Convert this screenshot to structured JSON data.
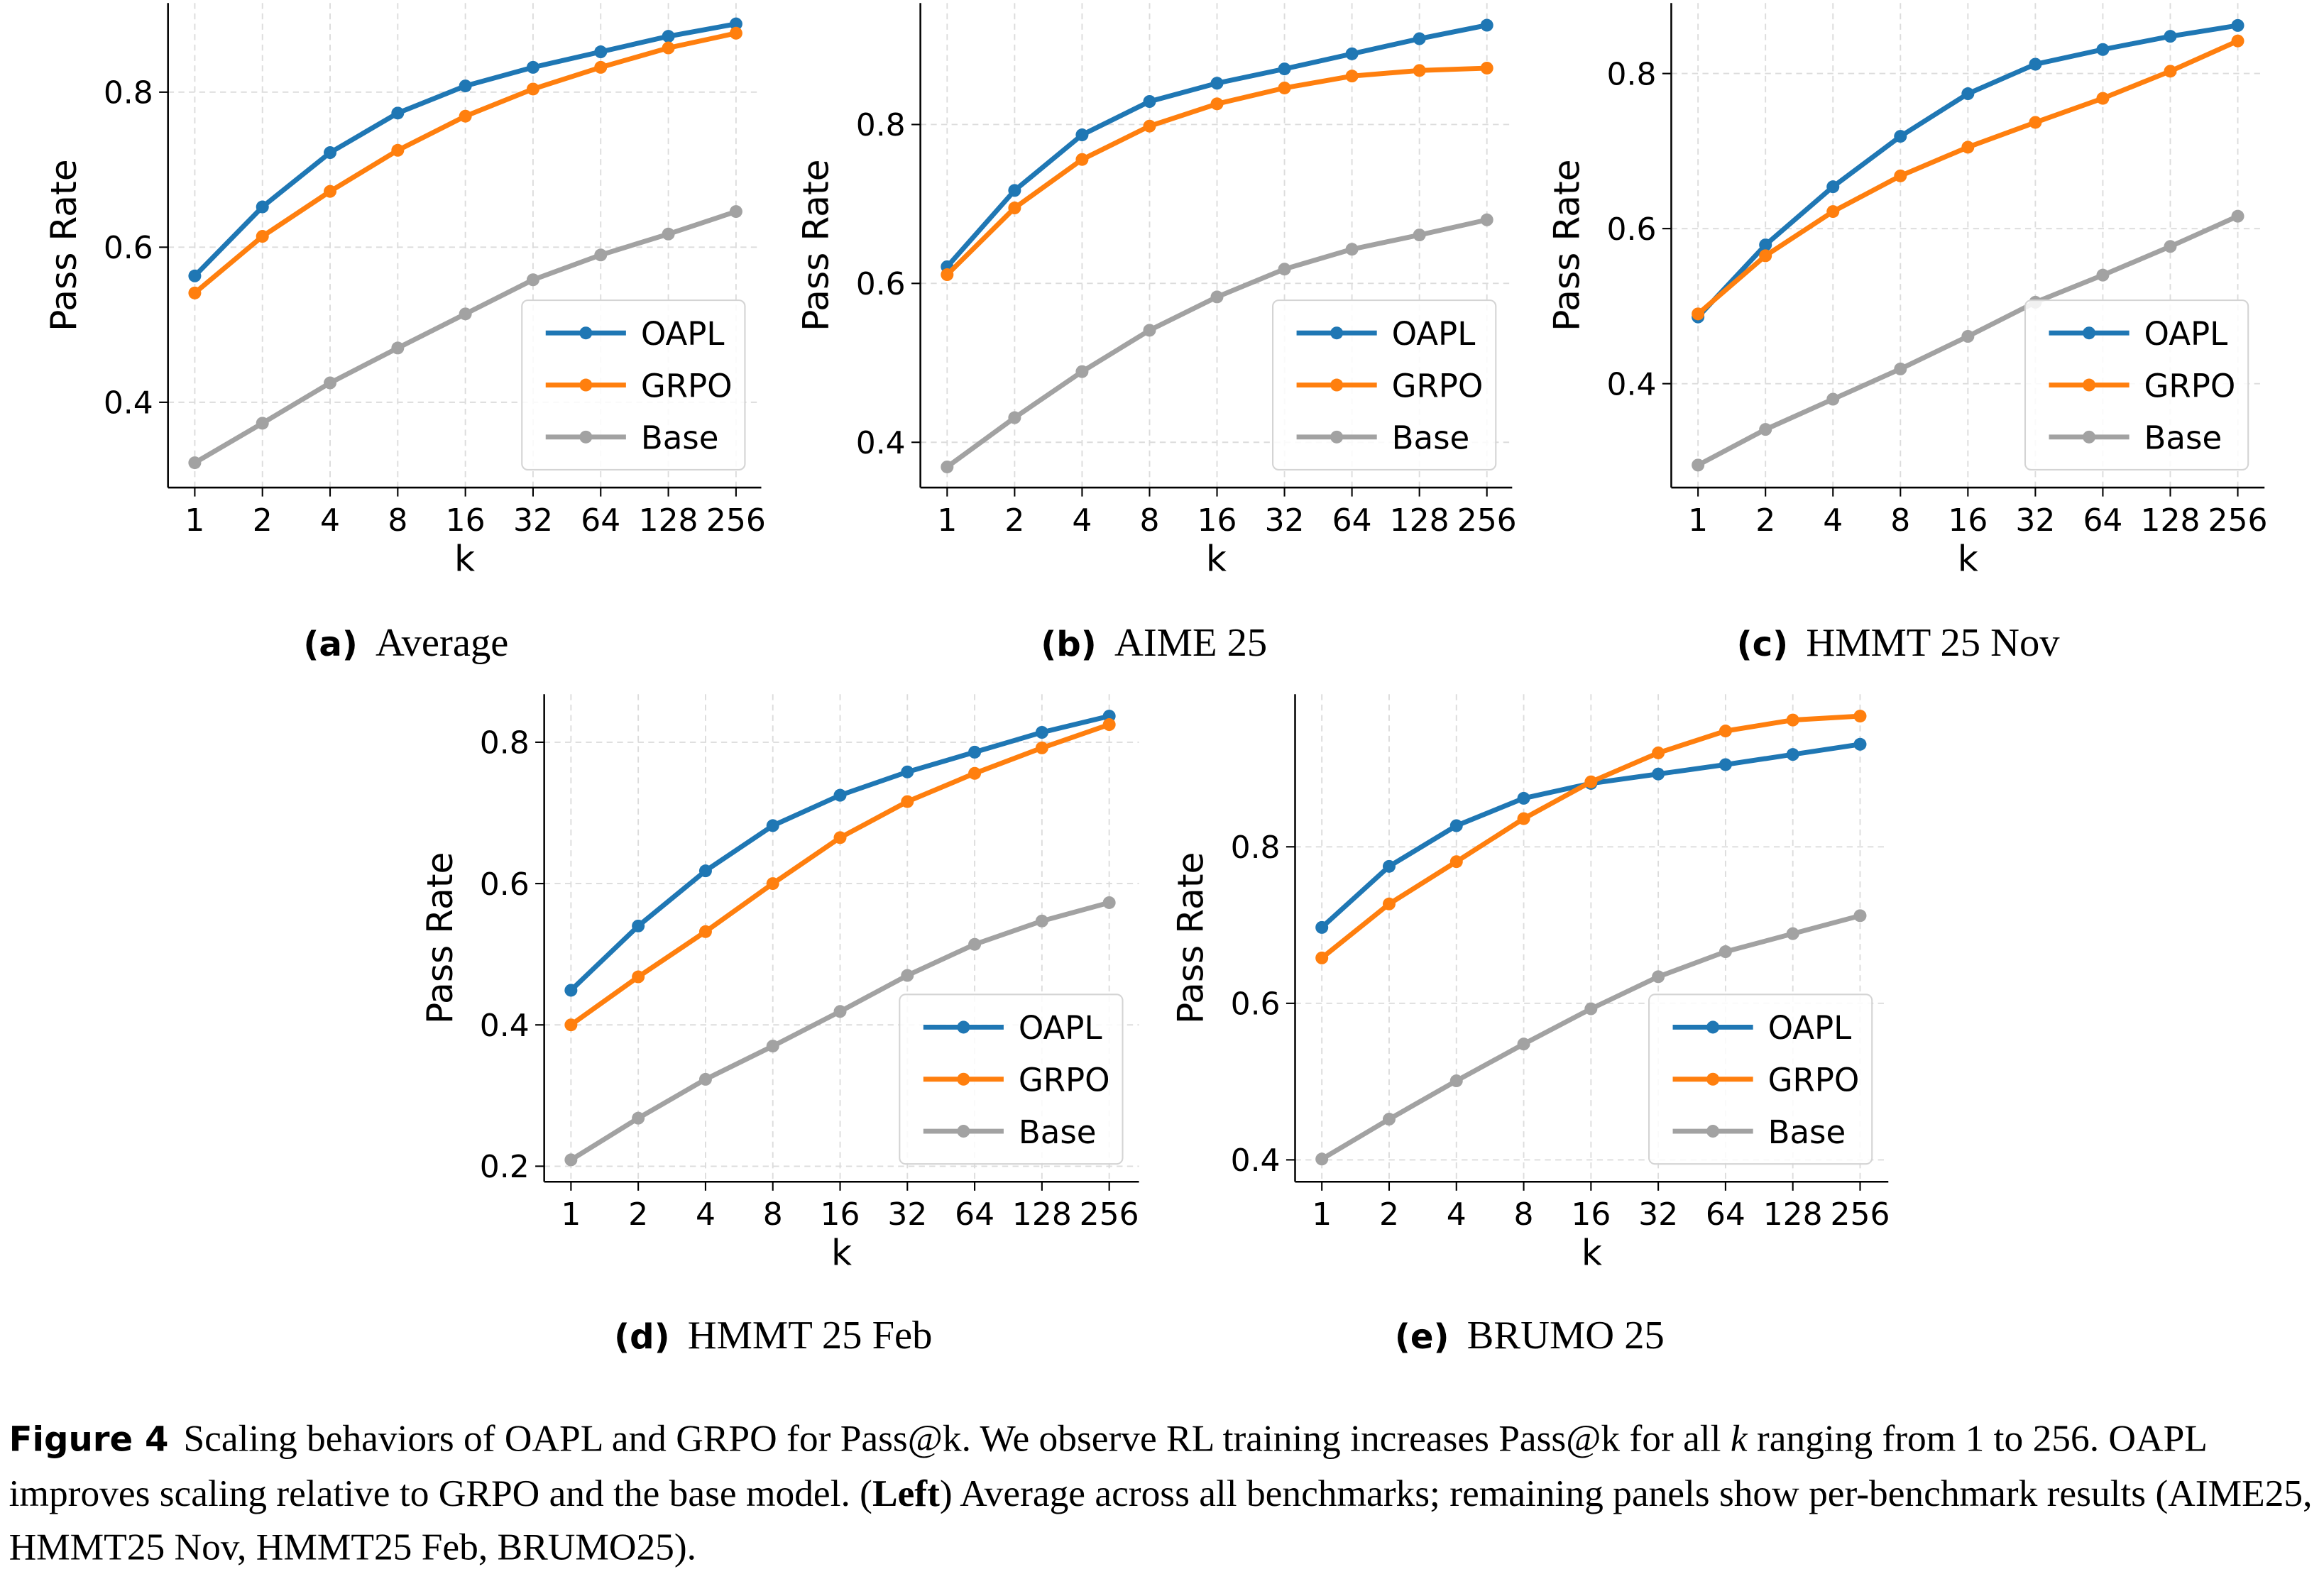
{
  "colors": {
    "OAPL": "#1f77b4",
    "GRPO": "#ff7f0e",
    "Base": "#a2a2a2",
    "grid": "#dcdcdc",
    "legend_border": "#d4d4d4"
  },
  "chart_data": [
    {
      "id": "a",
      "type": "line",
      "panel_tag": "(a)",
      "title": "Average",
      "xlabel": "k",
      "ylabel": "Pass Rate",
      "x": [
        1,
        2,
        4,
        8,
        16,
        32,
        64,
        128,
        256
      ],
      "x_tick_labels": [
        "1",
        "2",
        "4",
        "8",
        "16",
        "32",
        "64",
        "128",
        "256"
      ],
      "x_scale": "log2",
      "y_ticks": [
        0.4,
        0.6,
        0.8
      ],
      "y_tick_labels": [
        "0.4",
        "0.6",
        "0.8"
      ],
      "ylim": [
        0.29,
        0.915
      ],
      "grid": true,
      "legend_position": "lower-right",
      "series": [
        {
          "name": "OAPL",
          "values": [
            0.563,
            0.652,
            0.722,
            0.773,
            0.808,
            0.832,
            0.852,
            0.872,
            0.888
          ]
        },
        {
          "name": "GRPO",
          "values": [
            0.541,
            0.614,
            0.672,
            0.725,
            0.769,
            0.804,
            0.832,
            0.857,
            0.876
          ]
        },
        {
          "name": "Base",
          "values": [
            0.322,
            0.373,
            0.425,
            0.47,
            0.514,
            0.558,
            0.59,
            0.617,
            0.646
          ]
        }
      ]
    },
    {
      "id": "b",
      "type": "line",
      "panel_tag": "(b)",
      "title": "AIME 25",
      "xlabel": "k",
      "ylabel": "Pass Rate",
      "x": [
        1,
        2,
        4,
        8,
        16,
        32,
        64,
        128,
        256
      ],
      "x_tick_labels": [
        "1",
        "2",
        "4",
        "8",
        "16",
        "32",
        "64",
        "128",
        "256"
      ],
      "x_scale": "log2",
      "y_ticks": [
        0.4,
        0.6,
        0.8
      ],
      "y_tick_labels": [
        "0.4",
        "0.6",
        "0.8"
      ],
      "ylim": [
        0.343,
        0.953
      ],
      "grid": true,
      "legend_position": "lower-right",
      "series": [
        {
          "name": "OAPL",
          "values": [
            0.621,
            0.717,
            0.787,
            0.829,
            0.852,
            0.87,
            0.889,
            0.908,
            0.925
          ]
        },
        {
          "name": "GRPO",
          "values": [
            0.611,
            0.695,
            0.756,
            0.798,
            0.826,
            0.846,
            0.861,
            0.868,
            0.871
          ]
        },
        {
          "name": "Base",
          "values": [
            0.369,
            0.431,
            0.489,
            0.541,
            0.583,
            0.618,
            0.643,
            0.661,
            0.68
          ]
        }
      ]
    },
    {
      "id": "c",
      "type": "line",
      "panel_tag": "(c)",
      "title": "HMMT 25 Nov",
      "xlabel": "k",
      "ylabel": "Pass Rate",
      "x": [
        1,
        2,
        4,
        8,
        16,
        32,
        64,
        128,
        256
      ],
      "x_tick_labels": [
        "1",
        "2",
        "4",
        "8",
        "16",
        "32",
        "64",
        "128",
        "256"
      ],
      "x_scale": "log2",
      "y_ticks": [
        0.4,
        0.6,
        0.8
      ],
      "y_tick_labels": [
        "0.4",
        "0.6",
        "0.8"
      ],
      "ylim": [
        0.266,
        0.891
      ],
      "grid": true,
      "legend_position": "lower-right",
      "series": [
        {
          "name": "OAPL",
          "values": [
            0.486,
            0.579,
            0.654,
            0.719,
            0.774,
            0.812,
            0.831,
            0.848,
            0.862
          ]
        },
        {
          "name": "GRPO",
          "values": [
            0.49,
            0.565,
            0.622,
            0.668,
            0.705,
            0.737,
            0.768,
            0.803,
            0.842
          ]
        },
        {
          "name": "Base",
          "values": [
            0.295,
            0.341,
            0.38,
            0.419,
            0.461,
            0.505,
            0.54,
            0.577,
            0.616
          ]
        }
      ]
    },
    {
      "id": "d",
      "type": "line",
      "panel_tag": "(d)",
      "title": "HMMT 25 Feb",
      "xlabel": "k",
      "ylabel": "Pass Rate",
      "x": [
        1,
        2,
        4,
        8,
        16,
        32,
        64,
        128,
        256
      ],
      "x_tick_labels": [
        "1",
        "2",
        "4",
        "8",
        "16",
        "32",
        "64",
        "128",
        "256"
      ],
      "x_scale": "log2",
      "y_ticks": [
        0.2,
        0.4,
        0.6,
        0.8
      ],
      "y_tick_labels": [
        "0.2",
        "0.4",
        "0.6",
        "0.8"
      ],
      "ylim": [
        0.178,
        0.868
      ],
      "grid": true,
      "legend_position": "lower-right",
      "series": [
        {
          "name": "OAPL",
          "values": [
            0.449,
            0.54,
            0.618,
            0.682,
            0.725,
            0.758,
            0.786,
            0.814,
            0.837
          ]
        },
        {
          "name": "GRPO",
          "values": [
            0.4,
            0.468,
            0.532,
            0.6,
            0.665,
            0.716,
            0.756,
            0.792,
            0.825
          ]
        },
        {
          "name": "Base",
          "values": [
            0.209,
            0.268,
            0.323,
            0.37,
            0.419,
            0.47,
            0.514,
            0.547,
            0.573
          ]
        }
      ]
    },
    {
      "id": "e",
      "type": "line",
      "panel_tag": "(e)",
      "title": "BRUMO 25",
      "xlabel": "k",
      "ylabel": "Pass Rate",
      "x": [
        1,
        2,
        4,
        8,
        16,
        32,
        64,
        128,
        256
      ],
      "x_tick_labels": [
        "1",
        "2",
        "4",
        "8",
        "16",
        "32",
        "64",
        "128",
        "256"
      ],
      "x_scale": "log2",
      "y_ticks": [
        0.4,
        0.6,
        0.8
      ],
      "y_tick_labels": [
        "0.4",
        "0.6",
        "0.8"
      ],
      "ylim": [
        0.372,
        0.995
      ],
      "grid": true,
      "legend_position": "lower-right",
      "series": [
        {
          "name": "OAPL",
          "values": [
            0.697,
            0.775,
            0.827,
            0.862,
            0.881,
            0.893,
            0.905,
            0.918,
            0.931
          ]
        },
        {
          "name": "GRPO",
          "values": [
            0.658,
            0.727,
            0.781,
            0.836,
            0.883,
            0.92,
            0.948,
            0.962,
            0.967
          ]
        },
        {
          "name": "Base",
          "values": [
            0.401,
            0.452,
            0.501,
            0.548,
            0.593,
            0.634,
            0.666,
            0.689,
            0.712
          ]
        }
      ]
    }
  ],
  "caption": {
    "label": "Figure 4",
    "parts": [
      {
        "text": "Scaling behaviors of OAPL and GRPO for Pass@k. We observe RL training increases Pass@k for all ",
        "style": "normal"
      },
      {
        "text": "k",
        "style": "italic"
      },
      {
        "text": " ranging from 1 to 256. OAPL improves scaling relative to GRPO and the base model. (",
        "style": "normal"
      },
      {
        "text": "Left",
        "style": "bold"
      },
      {
        "text": ") Average across all benchmarks; remaining panels show per-benchmark results (AIME25, HMMT25 Nov, HMMT25 Feb, BRUMO25).",
        "style": "normal"
      }
    ]
  }
}
